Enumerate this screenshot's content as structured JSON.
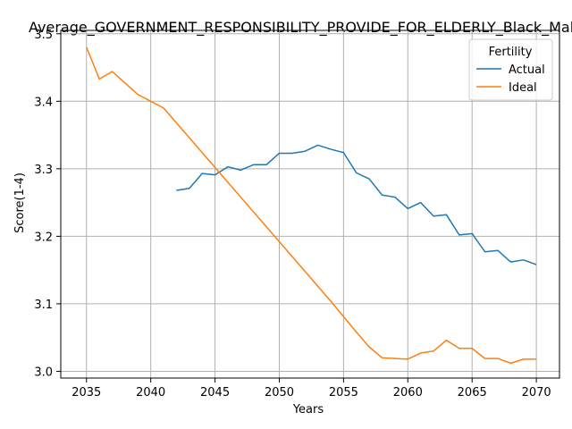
{
  "chart_data": {
    "type": "line",
    "title": "Average_GOVERNMENT_RESPONSIBILITY_PROVIDE_FOR_ELDERLY_Black_Male_",
    "xlabel": "Years",
    "ylabel": "Score(1-4)",
    "xlim": [
      2033,
      2071.8
    ],
    "ylim": [
      2.99,
      3.505
    ],
    "xticks": [
      2035,
      2040,
      2045,
      2050,
      2055,
      2060,
      2065,
      2070
    ],
    "yticks": [
      3.0,
      3.1,
      3.2,
      3.3,
      3.4,
      3.5
    ],
    "ytick_labels": [
      "3.0",
      "3.1",
      "3.2",
      "3.3",
      "3.4",
      "3.5"
    ],
    "grid": true,
    "legend": {
      "title": "Fertility",
      "position": "top-right"
    },
    "series": [
      {
        "name": "Actual",
        "color": "#1f77b4",
        "x": [
          2042,
          2043,
          2044,
          2045,
          2046,
          2047,
          2048,
          2049,
          2050,
          2051,
          2052,
          2053,
          2054,
          2055,
          2056,
          2057,
          2058,
          2059,
          2060,
          2061,
          2062,
          2063,
          2064,
          2065,
          2066,
          2067,
          2068,
          2069,
          2070
        ],
        "y": [
          3.268,
          3.271,
          3.293,
          3.291,
          3.303,
          3.298,
          3.306,
          3.306,
          3.323,
          3.323,
          3.326,
          3.335,
          3.329,
          3.324,
          3.294,
          3.285,
          3.261,
          3.258,
          3.241,
          3.25,
          3.23,
          3.232,
          3.202,
          3.204,
          3.177,
          3.179,
          3.162,
          3.165,
          3.158
        ]
      },
      {
        "name": "Ideal",
        "color": "#ff7f0e",
        "x": [
          2035,
          2036,
          2037,
          2038,
          2039,
          2040,
          2041,
          2042,
          2043,
          2044,
          2045,
          2046,
          2047,
          2048,
          2049,
          2050,
          2051,
          2052,
          2053,
          2054,
          2055,
          2056,
          2057,
          2058,
          2059,
          2060,
          2061,
          2062,
          2063,
          2064,
          2065,
          2066,
          2067,
          2068,
          2069,
          2070
        ],
        "y": [
          3.48,
          3.433,
          3.444,
          3.427,
          3.41,
          3.4,
          3.39,
          3.368,
          3.346,
          3.324,
          3.302,
          3.28,
          3.258,
          3.236,
          3.214,
          3.192,
          3.17,
          3.148,
          3.126,
          3.104,
          3.081,
          3.058,
          3.036,
          3.02,
          3.019,
          3.018,
          3.027,
          3.03,
          3.046,
          3.034,
          3.034,
          3.019,
          3.019,
          3.012,
          3.018,
          3.018
        ]
      }
    ]
  }
}
